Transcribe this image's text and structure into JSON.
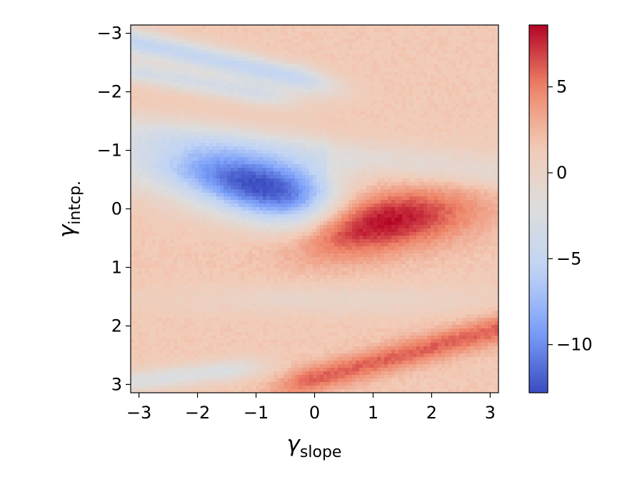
{
  "chart_data": {
    "type": "heatmap",
    "title": "",
    "xlabel": {
      "symbol": "γ",
      "subscript": "slope"
    },
    "ylabel": {
      "symbol": "γ",
      "subscript": "intcp."
    },
    "xlim": [
      -3.1416,
      3.1416
    ],
    "ylim": [
      3.1416,
      -3.1416
    ],
    "y_inverted": true,
    "x_ticks": [
      -3,
      -2,
      -1,
      0,
      1,
      2,
      3
    ],
    "x_tick_labels": [
      "−3",
      "−2",
      "−1",
      "0",
      "1",
      "2",
      "3"
    ],
    "y_ticks": [
      -3,
      -2,
      -1,
      0,
      1,
      2,
      3
    ],
    "y_tick_labels": [
      "−3",
      "−2",
      "−1",
      "0",
      "1",
      "2",
      "3"
    ],
    "grid": false,
    "colormap": "coolwarm",
    "colormap_stops": [
      "#3b4cc0",
      "#7b9ff9",
      "#c0d4f5",
      "#dddddd",
      "#f2cbb7",
      "#ee8468",
      "#b40426"
    ],
    "colorbar": {
      "range": [
        -12.8,
        8.6
      ],
      "ticks": [
        -10,
        -5,
        0,
        5
      ],
      "tick_labels": [
        "−10",
        "−5",
        "0",
        "5"
      ]
    },
    "z_features": [
      {
        "kind": "minimum",
        "x": -0.7,
        "y": -0.3,
        "value": -12.5
      },
      {
        "kind": "maximum",
        "x": 0.9,
        "y": 0.25,
        "value": 8.3
      },
      {
        "kind": "negative_band",
        "from": [
          -3.1,
          -3.1
        ],
        "to": [
          -1.0,
          -2.4
        ],
        "value": -5.5
      },
      {
        "kind": "positive_band",
        "from": [
          0.2,
          2.9
        ],
        "to": [
          3.1,
          2.05
        ],
        "value": 4.5
      }
    ]
  }
}
